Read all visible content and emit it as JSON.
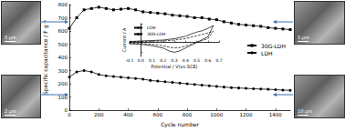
{
  "chart_data": [
    {
      "type": "line",
      "x_label": "Cycle number",
      "y_label": "Specific capacitance / F g⁻¹",
      "x": [
        0,
        50,
        100,
        150,
        200,
        250,
        300,
        350,
        400,
        450,
        500,
        550,
        600,
        650,
        700,
        750,
        800,
        850,
        900,
        950,
        1000,
        1050,
        1100,
        1150,
        1200,
        1250,
        1300,
        1350,
        1400,
        1450,
        1500
      ],
      "series": [
        {
          "name": "30G-LDH",
          "color": "#000000",
          "marker": "square",
          "values": [
            620,
            700,
            760,
            770,
            780,
            770,
            760,
            765,
            770,
            760,
            745,
            740,
            735,
            730,
            720,
            715,
            710,
            700,
            700,
            690,
            685,
            670,
            660,
            650,
            645,
            640,
            635,
            625,
            620,
            615,
            610
          ]
        },
        {
          "name": "LDH",
          "color": "#000000",
          "marker": "circle",
          "values": [
            250,
            290,
            300,
            290,
            270,
            260,
            255,
            250,
            245,
            240,
            235,
            225,
            220,
            215,
            210,
            205,
            200,
            195,
            190,
            185,
            180,
            175,
            170,
            168,
            165,
            162,
            160,
            158,
            155,
            152,
            150
          ]
        }
      ],
      "xlim": [
        0,
        1500
      ],
      "xticks": [
        0,
        200,
        400,
        600,
        800,
        1000,
        1200,
        1400
      ],
      "ylim": [
        0,
        800
      ],
      "yticks": [
        0,
        100,
        200,
        300,
        400,
        500,
        600,
        700,
        800
      ],
      "legend": "right"
    },
    {
      "type": "line",
      "x_label": "Potential / V(vs.SCE)",
      "y_label": "Current / A",
      "series": [
        {
          "name": "LDH",
          "color": "#000000",
          "line_style": "dashed",
          "x": [
            -0.1,
            0,
            0.1,
            0.2,
            0.3,
            0.4,
            0.45,
            0.5,
            0.55,
            0.6,
            0.65,
            0.6,
            0.55,
            0.5,
            0.45,
            0.4,
            0.35,
            0.3,
            0.25,
            0.2,
            0.1,
            0,
            -0.1,
            -0.1
          ],
          "values": [
            0.001,
            0.002,
            0.0025,
            0.003,
            0.005,
            0.008,
            0.011,
            0.014,
            0.017,
            0.02,
            0.024,
            0.008,
            0.004,
            0,
            -0.004,
            -0.008,
            -0.011,
            -0.012,
            -0.01,
            -0.007,
            -0.004,
            -0.002,
            -0.002,
            0.001
          ]
        },
        {
          "name": "30G-LDH",
          "color": "#000000",
          "line_style": "solid",
          "x": [
            -0.1,
            0,
            0.1,
            0.2,
            0.3,
            0.4,
            0.45,
            0.5,
            0.55,
            0.6,
            0.65,
            0.6,
            0.55,
            0.5,
            0.45,
            0.4,
            0.35,
            0.3,
            0.25,
            0.2,
            0.1,
            0,
            -0.1,
            -0.1
          ],
          "values": [
            0.002,
            0.003,
            0.004,
            0.005,
            0.008,
            0.013,
            0.018,
            0.022,
            0.025,
            0.03,
            0.036,
            0.012,
            0.006,
            0,
            -0.006,
            -0.012,
            -0.018,
            -0.021,
            -0.018,
            -0.012,
            -0.007,
            -0.004,
            -0.003,
            0.002
          ]
        }
      ],
      "xlim": [
        -0.1,
        0.7
      ],
      "xticks": [
        {
          "value": -0.1,
          "label": "-0.1"
        },
        {
          "value": 0,
          "label": "0.0"
        },
        0.1,
        0.2,
        0.3,
        0.4,
        0.5,
        0.6,
        0.7
      ],
      "ylim": [
        -0.03,
        0.04
      ],
      "yticks": [
        -0.02,
        0,
        0.02,
        0.04
      ],
      "tick_labels": "x",
      "legend": "upper left"
    }
  ],
  "images": [
    {
      "scale_bar": "5 μm"
    },
    {
      "scale_bar": "2 μm"
    },
    {
      "scale_bar": "5 μm"
    },
    {
      "scale_bar": "10 μm"
    }
  ]
}
